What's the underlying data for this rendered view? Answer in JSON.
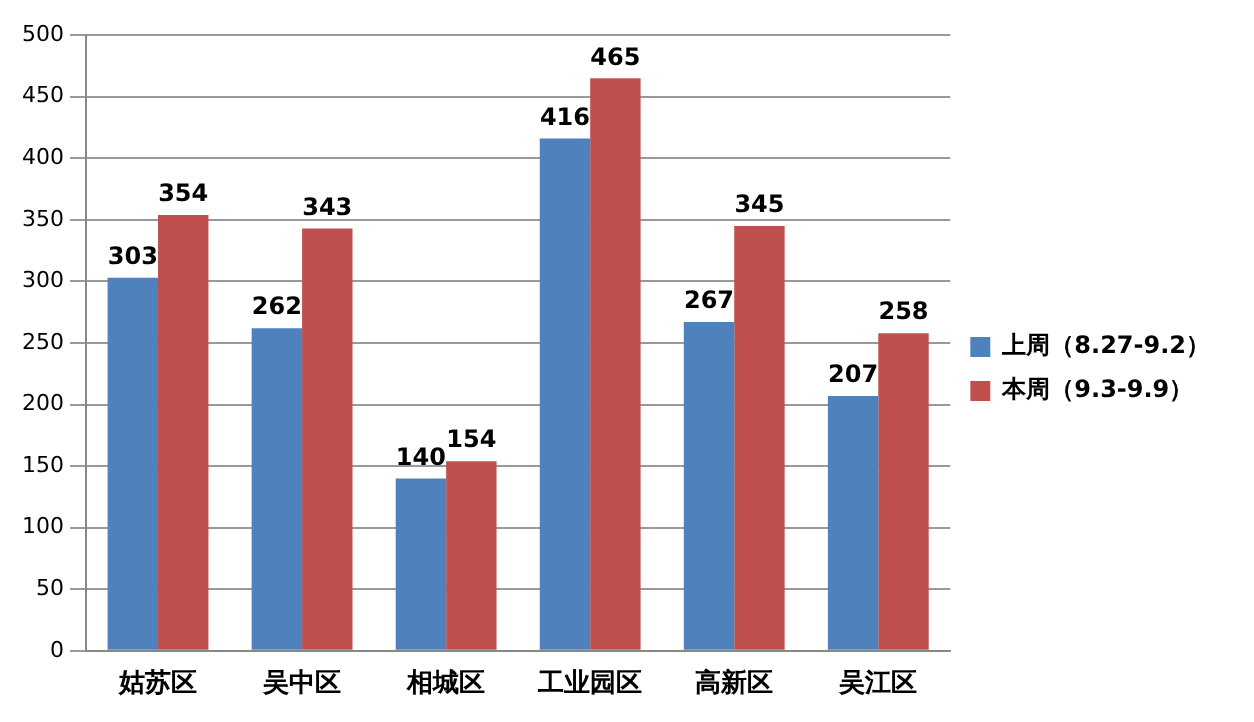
{
  "chart_data": {
    "type": "bar",
    "categories": [
      "姑苏区",
      "吴中区",
      "相城区",
      "工业园区",
      "高新区",
      "吴江区"
    ],
    "series": [
      {
        "name": "上周（8.27-9.2）",
        "color": "#4f81bd",
        "values": [
          303,
          262,
          140,
          416,
          267,
          207
        ]
      },
      {
        "name": "本周（9.3-9.9）",
        "color": "#c0504d",
        "values": [
          354,
          343,
          154,
          465,
          345,
          258
        ]
      }
    ],
    "ylim": [
      0,
      500
    ],
    "yticks": [
      0,
      50,
      100,
      150,
      200,
      250,
      300,
      350,
      400,
      450,
      500
    ],
    "grid": "y",
    "legend": "right",
    "data_labels": true
  }
}
